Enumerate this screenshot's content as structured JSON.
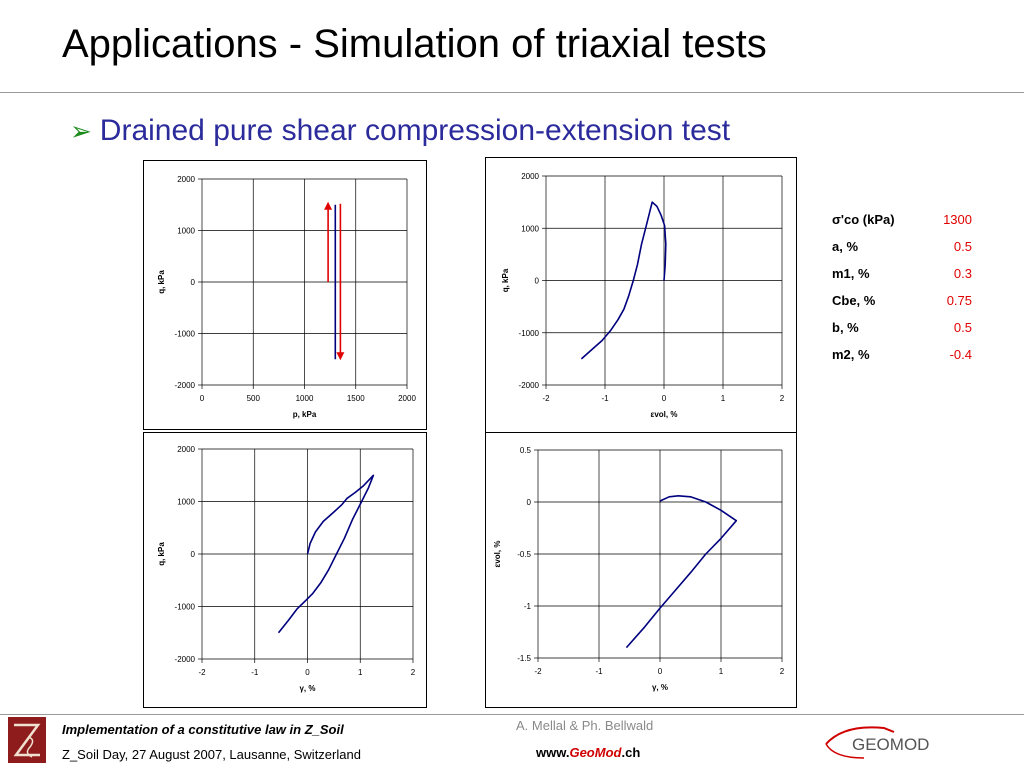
{
  "slide": {
    "title": "Applications - Simulation of triaxial tests",
    "bullet": "Drained pure shear compression-extension test",
    "bullet_icon": "arrow-bullet-icon"
  },
  "params": [
    {
      "name": "σ'co (kPa)",
      "value": "1300"
    },
    {
      "name": "a, %",
      "value": "0.5"
    },
    {
      "name": "m1, %",
      "value": "0.3"
    },
    {
      "name": "Cbe, %",
      "value": "0.75"
    },
    {
      "name": "b, %",
      "value": "0.5"
    },
    {
      "name": "m2, %",
      "value": "-0.4"
    }
  ],
  "footer": {
    "line1": "Implementation of a constitutive law in Z_Soil",
    "line2": "Z_Soil Day, 27 August 2007, Lausanne, Switzerland",
    "authors": "A. Mellal & Ph. Bellwald",
    "www_prefix": "www.",
    "www_geo": "Geo",
    "www_mod": "Mod",
    "www_suffix": ".ch",
    "logo_text": "GEOMOD"
  },
  "colors": {
    "curve": "#00007f",
    "arrow": "#e00000",
    "bullet_text": "#2b2b9c",
    "arrow_bullet": "#1a8a1a"
  },
  "chart_data": [
    {
      "type": "line",
      "xlabel": "p, kPa",
      "ylabel": "q, kPa",
      "xlim": [
        0,
        2000
      ],
      "ylim": [
        -2000,
        2000
      ],
      "xticks": [
        "0",
        "500",
        "1000",
        "1500",
        "2000"
      ],
      "yticks": [
        "2000",
        "1000",
        "0",
        "-1000",
        "-2000"
      ],
      "grid": true,
      "series": [
        {
          "x": [
            1300,
            1300
          ],
          "y": [
            -1500,
            1500
          ],
          "color": "#00007f"
        },
        {
          "x": [
            1230,
            1230
          ],
          "y": [
            0,
            1520
          ],
          "color": "#e00000",
          "arrow": "up"
        },
        {
          "x": [
            1350,
            1350
          ],
          "y": [
            1520,
            -1480
          ],
          "color": "#e00000",
          "arrow": "down"
        }
      ]
    },
    {
      "type": "line",
      "xlabel": "εvol, %",
      "ylabel": "q, kPa",
      "xlim": [
        -2,
        2
      ],
      "ylim": [
        -2000,
        2000
      ],
      "xticks": [
        "-2",
        "-1",
        "0",
        "1",
        "2"
      ],
      "yticks": [
        "2000",
        "1000",
        "0",
        "-1000",
        "-2000"
      ],
      "grid": true,
      "series": [
        {
          "x": [
            0,
            0.02,
            0.03,
            0.01,
            -0.05,
            -0.12,
            -0.2,
            -0.3,
            -0.38,
            -0.45,
            -0.52,
            -0.6,
            -0.68,
            -0.78,
            -0.9,
            -1.05,
            -1.2,
            -1.4
          ],
          "y": [
            0,
            300,
            700,
            1050,
            1250,
            1420,
            1500,
            1050,
            700,
            300,
            0,
            -300,
            -550,
            -750,
            -950,
            -1150,
            -1300,
            -1500
          ],
          "color": "#00007f"
        }
      ]
    },
    {
      "type": "line",
      "xlabel": "γ, %",
      "ylabel": "q, kPa",
      "xlim": [
        -2,
        2
      ],
      "ylim": [
        -2000,
        2000
      ],
      "xticks": [
        "-2",
        "-1",
        "0",
        "1",
        "2"
      ],
      "yticks": [
        "2000",
        "1000",
        "0",
        "-1000",
        "-2000"
      ],
      "grid": true,
      "series": [
        {
          "x": [
            0,
            0.05,
            0.15,
            0.3,
            0.5,
            0.65,
            0.75,
            0.9,
            1.05,
            1.25,
            1.15,
            1.0,
            0.85,
            0.7,
            0.55,
            0.4,
            0.25,
            0.1,
            -0.05,
            -0.2,
            -0.35,
            -0.55
          ],
          "y": [
            0,
            200,
            420,
            620,
            800,
            940,
            1060,
            1170,
            1290,
            1500,
            1250,
            950,
            650,
            300,
            0,
            -300,
            -550,
            -750,
            -900,
            -1050,
            -1250,
            -1500
          ],
          "color": "#00007f"
        }
      ]
    },
    {
      "type": "line",
      "xlabel": "γ, %",
      "ylabel": "εvol, %",
      "xlim": [
        -2,
        2
      ],
      "ylim": [
        -1.5,
        0.5
      ],
      "xticks": [
        "-2",
        "-1",
        "0",
        "1",
        "2"
      ],
      "yticks": [
        "0.5",
        "0",
        "-0.5",
        "-1",
        "-1.5"
      ],
      "grid": true,
      "series": [
        {
          "x": [
            0,
            0.15,
            0.3,
            0.5,
            0.75,
            1.0,
            1.25,
            1.0,
            0.75,
            0.5,
            0.25,
            0,
            -0.25,
            -0.55
          ],
          "y": [
            0.01,
            0.05,
            0.06,
            0.05,
            0.0,
            -0.08,
            -0.18,
            -0.35,
            -0.5,
            -0.68,
            -0.85,
            -1.02,
            -1.2,
            -1.4
          ],
          "color": "#00007f"
        }
      ]
    }
  ]
}
